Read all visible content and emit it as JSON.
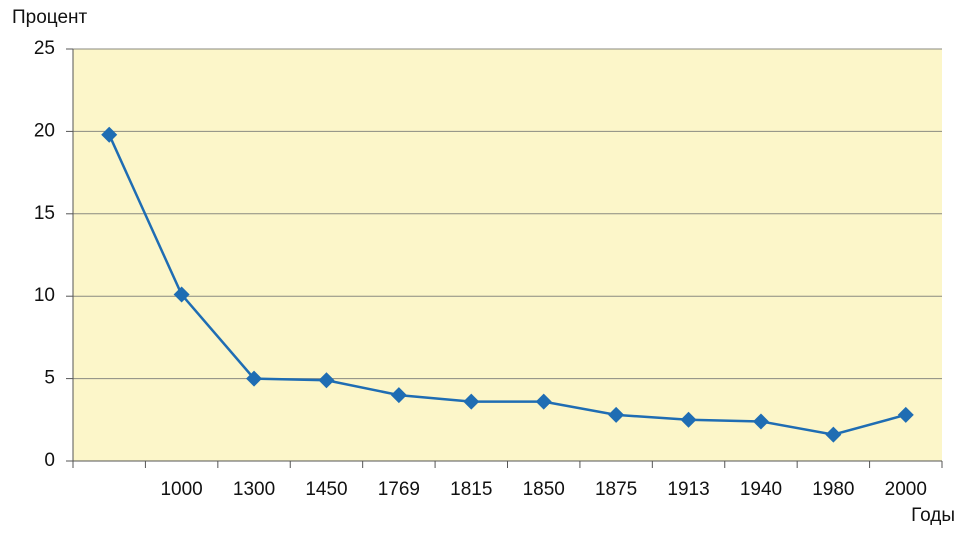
{
  "chart_data": {
    "type": "line",
    "y_label": "Процент",
    "x_label": "Годы",
    "categories": [
      null,
      "1000",
      "1300",
      "1450",
      "1769",
      "1815",
      "1850",
      "1875",
      "1913",
      "1940",
      "1980",
      "2000"
    ],
    "values": [
      19.8,
      10.1,
      5.0,
      4.9,
      4.0,
      3.6,
      3.6,
      2.8,
      2.5,
      2.4,
      1.6,
      2.8
    ],
    "color": "#1f6db3",
    "ylim": [
      0,
      25
    ],
    "yticks": [
      0,
      5,
      10,
      15,
      20,
      25
    ],
    "grid": true
  }
}
